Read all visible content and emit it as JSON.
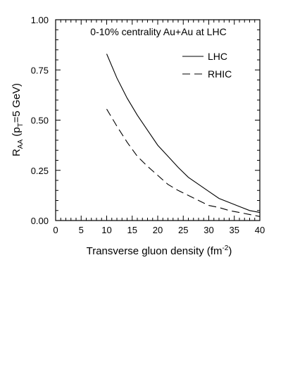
{
  "chart_data": {
    "type": "line",
    "title": "",
    "annotation": "0-10% centrality Au+Au at LHC",
    "xlabel": {
      "main": "Transverse gluon density (fm",
      "sup": "-2",
      "close": ")"
    },
    "ylabel": {
      "r": "R",
      "r_sub": "AA",
      "open": " (p",
      "p_sub": "T",
      "rest": "=5 GeV)"
    },
    "xlim": [
      0,
      40
    ],
    "ylim": [
      0,
      1.0
    ],
    "xticks": [
      "0",
      "5",
      "10",
      "15",
      "20",
      "25",
      "30",
      "35",
      "40"
    ],
    "yticks": [
      "0.00",
      "0.25",
      "0.50",
      "0.75",
      "1.00"
    ],
    "grid": false,
    "legend_position": "top-right",
    "series": [
      {
        "name": "LHC",
        "style": "solid",
        "x": [
          10,
          12,
          14,
          16,
          18,
          20,
          22,
          24,
          26,
          28,
          30,
          32,
          34,
          36,
          38,
          40
        ],
        "y": [
          0.83,
          0.71,
          0.61,
          0.525,
          0.45,
          0.375,
          0.32,
          0.265,
          0.215,
          0.18,
          0.145,
          0.11,
          0.09,
          0.07,
          0.05,
          0.04
        ]
      },
      {
        "name": "RHIC",
        "style": "dashed",
        "x": [
          10,
          12,
          14,
          16,
          18,
          20,
          22,
          24,
          26,
          28,
          30,
          32,
          34,
          36,
          38,
          40
        ],
        "y": [
          0.555,
          0.47,
          0.39,
          0.32,
          0.27,
          0.225,
          0.18,
          0.15,
          0.125,
          0.1,
          0.075,
          0.065,
          0.05,
          0.04,
          0.03,
          0.02
        ]
      }
    ]
  }
}
